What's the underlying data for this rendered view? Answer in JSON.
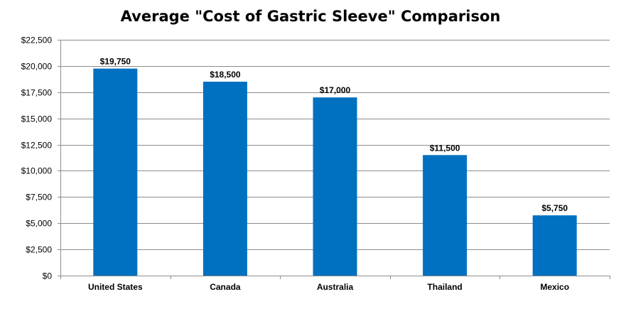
{
  "chart_data": {
    "type": "bar",
    "title": "Average \"Cost of Gastric Sleeve\" Comparison",
    "xlabel": "",
    "ylabel": "",
    "categories": [
      "United States",
      "Canada",
      "Australia",
      "Thailand",
      "Mexico"
    ],
    "values": [
      19750,
      18500,
      17000,
      11500,
      5750
    ],
    "value_labels": [
      "$19,750",
      "$18,500",
      "$17,000",
      "$11,500",
      "$5,750"
    ],
    "ylim": [
      0,
      22500
    ],
    "y_ticks": [
      0,
      2500,
      5000,
      7500,
      10000,
      12500,
      15000,
      17500,
      20000,
      22500
    ],
    "y_tick_labels": [
      "$0",
      "$2,500",
      "$5,000",
      "$7,500",
      "$10,000",
      "$12,500",
      "$15,000",
      "$17,500",
      "$20,000",
      "$22,500"
    ],
    "grid": true,
    "legend": "none",
    "bar_color": "#0070C0"
  }
}
